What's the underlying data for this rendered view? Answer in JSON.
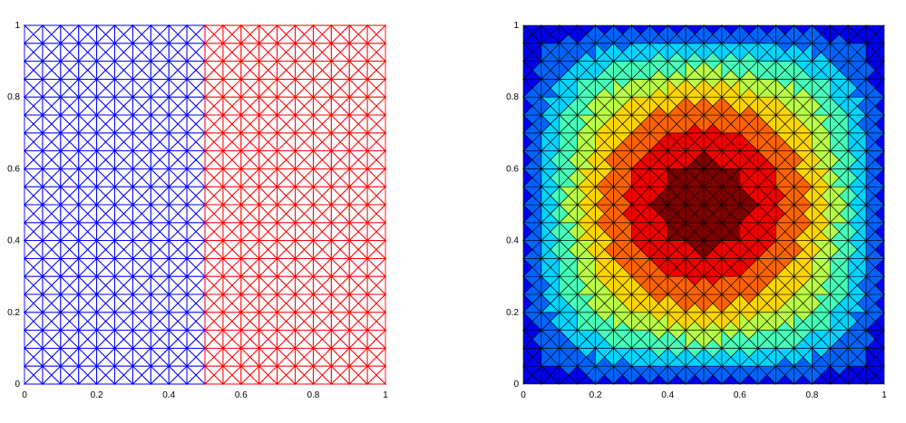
{
  "chart_data": [
    {
      "type": "mesh",
      "title": "",
      "xlabel": "",
      "ylabel": "",
      "xlim": [
        0,
        1
      ],
      "ylim": [
        0,
        1
      ],
      "x_ticks": [
        "0",
        "0.2",
        "0.4",
        "0.6",
        "0.8",
        "1"
      ],
      "y_ticks": [
        "0",
        "0.2",
        "0.4",
        "0.6",
        "0.8",
        "1"
      ],
      "grid_divisions": 20,
      "subdomains": [
        {
          "x_range": [
            0,
            0.5
          ],
          "color": "#0000ff"
        },
        {
          "x_range": [
            0.5,
            1
          ],
          "color": "#ff0000"
        }
      ]
    },
    {
      "type": "heatmap",
      "title": "",
      "xlabel": "",
      "ylabel": "",
      "xlim": [
        0,
        1
      ],
      "ylim": [
        0,
        1
      ],
      "x_ticks": [
        "0",
        "0.2",
        "0.4",
        "0.6",
        "0.8",
        "1"
      ],
      "y_ticks": [
        "0",
        "0.2",
        "0.4",
        "0.6",
        "0.8",
        "1"
      ],
      "grid_divisions": 20,
      "colormap": "jet",
      "field_peak": [
        0.5,
        0.5
      ],
      "edge_color": "#000000"
    }
  ]
}
